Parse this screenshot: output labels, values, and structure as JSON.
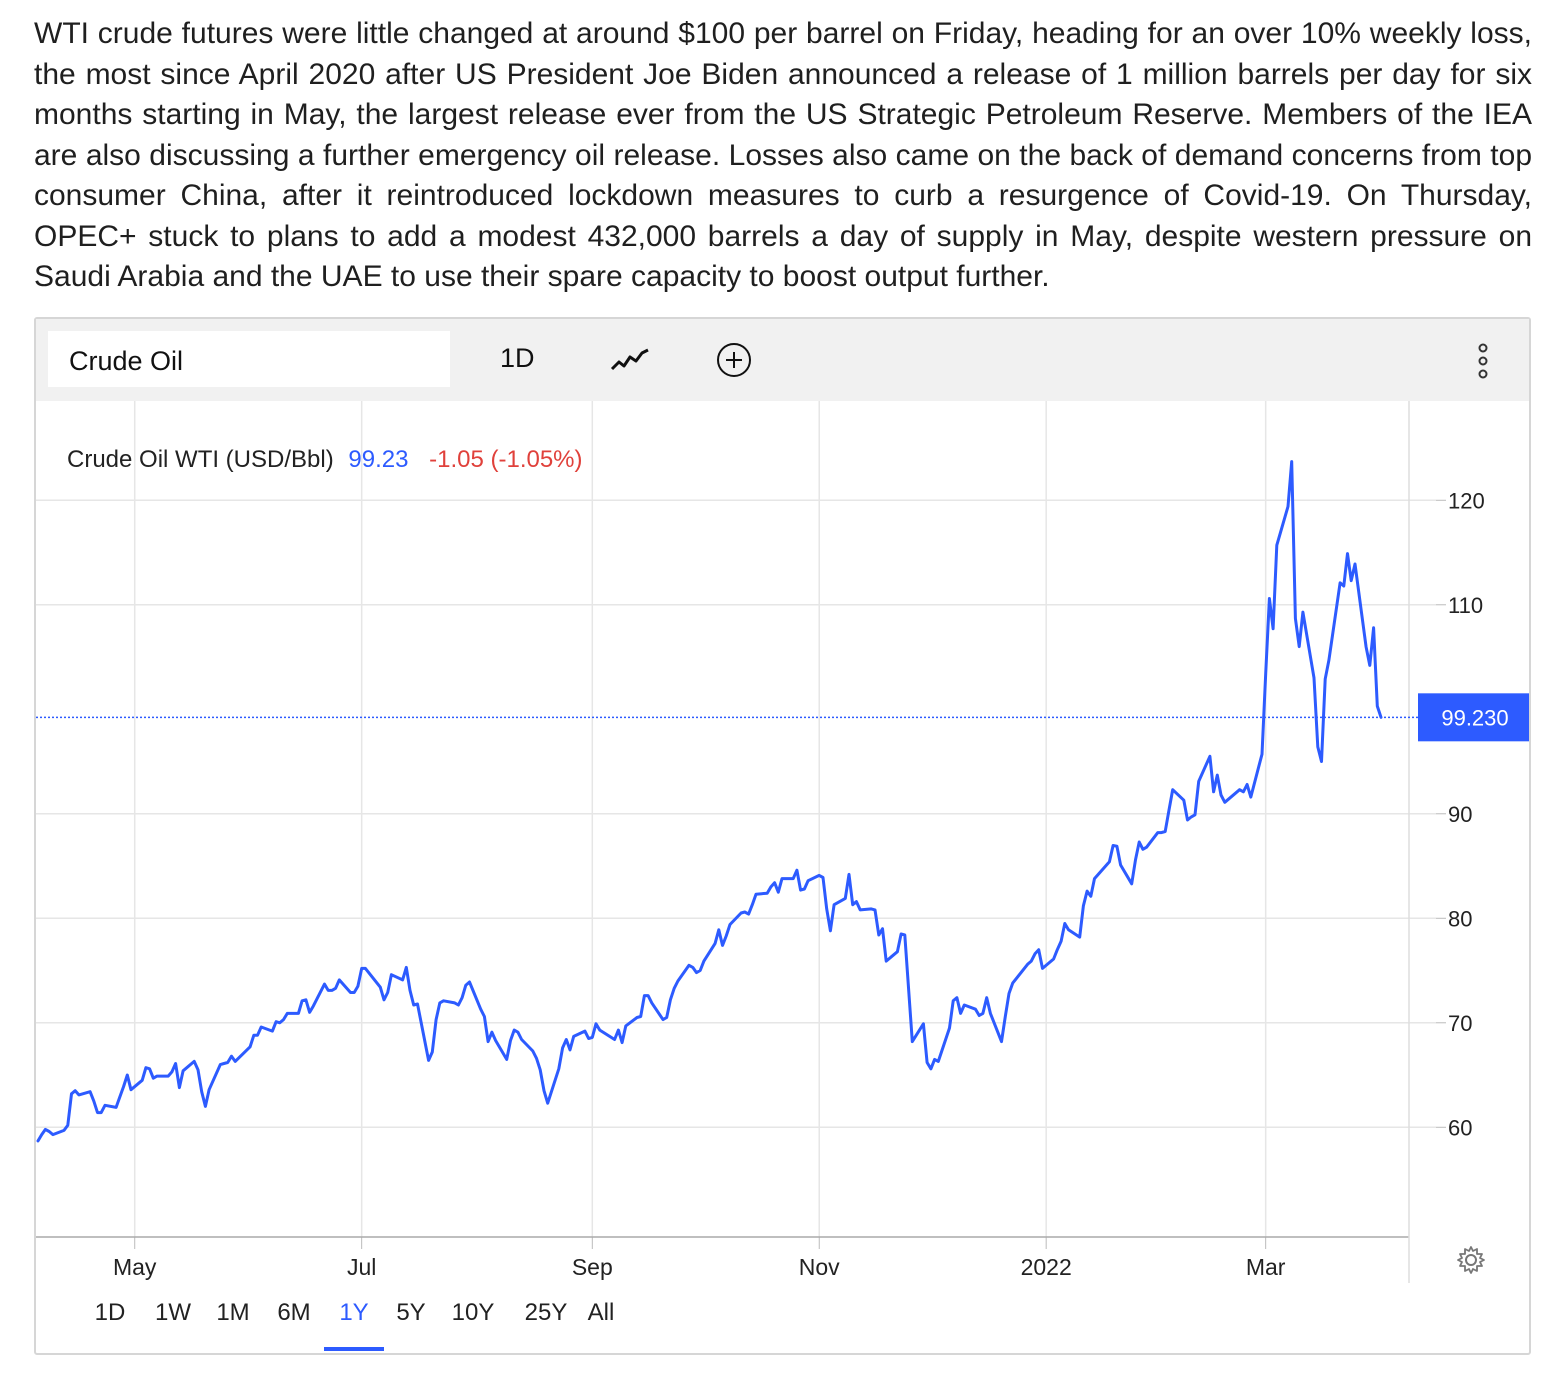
{
  "article": {
    "text": "WTI crude futures were little changed at around $100 per barrel on Friday, heading for an over 10% weekly loss, the most since April 2020 after US President Joe Biden announced a release of 1 million barrels per day for six months starting in May, the largest release ever from the US Strategic Petroleum Reserve. Members of the IEA are also discussing a further emergency oil release. Losses also came on the back of demand concerns from top consumer China, after it reintroduced lockdown measures to curb a resurgence of Covid-19. On Thursday, OPEC+ stuck to plans to add a modest 432,000 barrels a day of supply in May, despite western pressure on Saudi Arabia and the UAE to use their spare capacity to boost output further."
  },
  "toolbar": {
    "symbol": "Crude Oil",
    "interval": "1D",
    "chart_type_icon": "line-chart-icon",
    "add_icon": "plus-circle-icon",
    "more_icon": "vertical-dots-icon"
  },
  "legend": {
    "name": "Crude Oil WTI (USD/Bbl)",
    "price": "99.23",
    "change": "-1.05 (-1.05%)"
  },
  "colors": {
    "line": "#2d5bff",
    "negative": "#e0413b",
    "grid": "#e6e6e6",
    "price_tag_bg": "#2d5bff"
  },
  "current_price_tag": "99.230",
  "ranges": [
    "1D",
    "1W",
    "1M",
    "6M",
    "1Y",
    "5Y",
    "10Y",
    "25Y",
    "All"
  ],
  "active_range": "1Y",
  "settings_icon": "gear-icon",
  "chart_data": {
    "type": "line",
    "title": "Crude Oil WTI (USD/Bbl)",
    "xlabel": "",
    "ylabel": "",
    "x_tick_labels": [
      "May",
      "Jul",
      "Sep",
      "Nov",
      "2022",
      "Mar"
    ],
    "y_ticks": [
      60,
      70,
      80,
      90,
      110,
      120
    ],
    "ylim": [
      49.5,
      129.5
    ],
    "grid": true,
    "last_value": 99.23,
    "x_range": [
      "2021-04-05",
      "2022-04-01"
    ],
    "series": [
      {
        "points": [
          [
            "2021-04-05",
            58.7
          ],
          [
            "2021-04-06",
            59.3
          ],
          [
            "2021-04-07",
            59.8
          ],
          [
            "2021-04-08",
            59.6
          ],
          [
            "2021-04-09",
            59.3
          ],
          [
            "2021-04-12",
            59.7
          ],
          [
            "2021-04-13",
            60.2
          ],
          [
            "2021-04-14",
            63.2
          ],
          [
            "2021-04-15",
            63.5
          ],
          [
            "2021-04-16",
            63.1
          ],
          [
            "2021-04-19",
            63.4
          ],
          [
            "2021-04-20",
            62.5
          ],
          [
            "2021-04-21",
            61.4
          ],
          [
            "2021-04-22",
            61.4
          ],
          [
            "2021-04-23",
            62.1
          ],
          [
            "2021-04-26",
            61.9
          ],
          [
            "2021-04-27",
            62.9
          ],
          [
            "2021-04-28",
            63.9
          ],
          [
            "2021-04-29",
            65.0
          ],
          [
            "2021-04-30",
            63.6
          ],
          [
            "2021-05-03",
            64.5
          ],
          [
            "2021-05-04",
            65.7
          ],
          [
            "2021-05-05",
            65.6
          ],
          [
            "2021-05-06",
            64.7
          ],
          [
            "2021-05-07",
            64.9
          ],
          [
            "2021-05-10",
            64.9
          ],
          [
            "2021-05-11",
            65.3
          ],
          [
            "2021-05-12",
            66.1
          ],
          [
            "2021-05-13",
            63.8
          ],
          [
            "2021-05-14",
            65.4
          ],
          [
            "2021-05-17",
            66.3
          ],
          [
            "2021-05-18",
            65.5
          ],
          [
            "2021-05-19",
            63.4
          ],
          [
            "2021-05-20",
            62.0
          ],
          [
            "2021-05-21",
            63.6
          ],
          [
            "2021-05-24",
            66.0
          ],
          [
            "2021-05-25",
            66.1
          ],
          [
            "2021-05-26",
            66.2
          ],
          [
            "2021-05-27",
            66.8
          ],
          [
            "2021-05-28",
            66.3
          ],
          [
            "2021-06-01",
            67.7
          ],
          [
            "2021-06-02",
            68.8
          ],
          [
            "2021-06-03",
            68.8
          ],
          [
            "2021-06-04",
            69.6
          ],
          [
            "2021-06-07",
            69.2
          ],
          [
            "2021-06-08",
            70.1
          ],
          [
            "2021-06-09",
            70.0
          ],
          [
            "2021-06-10",
            70.3
          ],
          [
            "2021-06-11",
            70.9
          ],
          [
            "2021-06-14",
            70.9
          ],
          [
            "2021-06-15",
            72.1
          ],
          [
            "2021-06-16",
            72.2
          ],
          [
            "2021-06-17",
            71.0
          ],
          [
            "2021-06-18",
            71.6
          ],
          [
            "2021-06-21",
            73.7
          ],
          [
            "2021-06-22",
            73.1
          ],
          [
            "2021-06-23",
            73.1
          ],
          [
            "2021-06-24",
            73.3
          ],
          [
            "2021-06-25",
            74.1
          ],
          [
            "2021-06-28",
            72.9
          ],
          [
            "2021-06-29",
            72.9
          ],
          [
            "2021-06-30",
            73.5
          ],
          [
            "2021-07-01",
            75.2
          ],
          [
            "2021-07-02",
            75.2
          ],
          [
            "2021-07-06",
            73.4
          ],
          [
            "2021-07-07",
            72.2
          ],
          [
            "2021-07-08",
            72.9
          ],
          [
            "2021-07-09",
            74.6
          ],
          [
            "2021-07-12",
            74.1
          ],
          [
            "2021-07-13",
            75.3
          ],
          [
            "2021-07-14",
            73.1
          ],
          [
            "2021-07-15",
            71.7
          ],
          [
            "2021-07-16",
            71.8
          ],
          [
            "2021-07-19",
            66.4
          ],
          [
            "2021-07-20",
            67.2
          ],
          [
            "2021-07-21",
            70.3
          ],
          [
            "2021-07-22",
            71.9
          ],
          [
            "2021-07-23",
            72.1
          ],
          [
            "2021-07-26",
            71.9
          ],
          [
            "2021-07-27",
            71.7
          ],
          [
            "2021-07-28",
            72.4
          ],
          [
            "2021-07-29",
            73.6
          ],
          [
            "2021-07-30",
            73.9
          ],
          [
            "2021-08-02",
            71.3
          ],
          [
            "2021-08-03",
            70.6
          ],
          [
            "2021-08-04",
            68.2
          ],
          [
            "2021-08-05",
            69.1
          ],
          [
            "2021-08-06",
            68.3
          ],
          [
            "2021-08-09",
            66.5
          ],
          [
            "2021-08-10",
            68.3
          ],
          [
            "2021-08-11",
            69.3
          ],
          [
            "2021-08-12",
            69.1
          ],
          [
            "2021-08-13",
            68.4
          ],
          [
            "2021-08-16",
            67.3
          ],
          [
            "2021-08-17",
            66.6
          ],
          [
            "2021-08-18",
            65.5
          ],
          [
            "2021-08-19",
            63.5
          ],
          [
            "2021-08-20",
            62.3
          ],
          [
            "2021-08-23",
            65.6
          ],
          [
            "2021-08-24",
            67.6
          ],
          [
            "2021-08-25",
            68.4
          ],
          [
            "2021-08-26",
            67.4
          ],
          [
            "2021-08-27",
            68.7
          ],
          [
            "2021-08-30",
            69.2
          ],
          [
            "2021-08-31",
            68.5
          ],
          [
            "2021-09-01",
            68.6
          ],
          [
            "2021-09-02",
            69.9
          ],
          [
            "2021-09-03",
            69.3
          ],
          [
            "2021-09-07",
            68.4
          ],
          [
            "2021-09-08",
            69.3
          ],
          [
            "2021-09-09",
            68.1
          ],
          [
            "2021-09-10",
            69.7
          ],
          [
            "2021-09-13",
            70.5
          ],
          [
            "2021-09-14",
            70.6
          ],
          [
            "2021-09-15",
            72.6
          ],
          [
            "2021-09-16",
            72.6
          ],
          [
            "2021-09-17",
            71.9
          ],
          [
            "2021-09-20",
            70.3
          ],
          [
            "2021-09-21",
            70.5
          ],
          [
            "2021-09-22",
            72.2
          ],
          [
            "2021-09-23",
            73.3
          ],
          [
            "2021-09-24",
            74.0
          ],
          [
            "2021-09-27",
            75.5
          ],
          [
            "2021-09-28",
            75.3
          ],
          [
            "2021-09-29",
            74.8
          ],
          [
            "2021-09-30",
            75.0
          ],
          [
            "2021-10-01",
            75.9
          ],
          [
            "2021-10-04",
            77.6
          ],
          [
            "2021-10-05",
            78.9
          ],
          [
            "2021-10-06",
            77.4
          ],
          [
            "2021-10-07",
            78.3
          ],
          [
            "2021-10-08",
            79.4
          ],
          [
            "2021-10-11",
            80.5
          ],
          [
            "2021-10-12",
            80.6
          ],
          [
            "2021-10-13",
            80.4
          ],
          [
            "2021-10-14",
            81.3
          ],
          [
            "2021-10-15",
            82.3
          ],
          [
            "2021-10-18",
            82.4
          ],
          [
            "2021-10-19",
            83.0
          ],
          [
            "2021-10-20",
            83.4
          ],
          [
            "2021-10-21",
            82.5
          ],
          [
            "2021-10-22",
            83.8
          ],
          [
            "2021-10-25",
            83.8
          ],
          [
            "2021-10-26",
            84.6
          ],
          [
            "2021-10-27",
            82.7
          ],
          [
            "2021-10-28",
            82.8
          ],
          [
            "2021-10-29",
            83.6
          ],
          [
            "2021-11-01",
            84.1
          ],
          [
            "2021-11-02",
            83.9
          ],
          [
            "2021-11-03",
            80.9
          ],
          [
            "2021-11-04",
            78.8
          ],
          [
            "2021-11-05",
            81.3
          ],
          [
            "2021-11-08",
            81.9
          ],
          [
            "2021-11-09",
            84.2
          ],
          [
            "2021-11-10",
            81.3
          ],
          [
            "2021-11-11",
            81.6
          ],
          [
            "2021-11-12",
            80.8
          ],
          [
            "2021-11-15",
            80.9
          ],
          [
            "2021-11-16",
            80.8
          ],
          [
            "2021-11-17",
            78.4
          ],
          [
            "2021-11-18",
            79.0
          ],
          [
            "2021-11-19",
            75.9
          ],
          [
            "2021-11-22",
            76.8
          ],
          [
            "2021-11-23",
            78.5
          ],
          [
            "2021-11-24",
            78.4
          ],
          [
            "2021-11-26",
            68.2
          ],
          [
            "2021-11-29",
            69.9
          ],
          [
            "2021-11-30",
            66.2
          ],
          [
            "2021-12-01",
            65.6
          ],
          [
            "2021-12-02",
            66.5
          ],
          [
            "2021-12-03",
            66.3
          ],
          [
            "2021-12-06",
            69.5
          ],
          [
            "2021-12-07",
            72.1
          ],
          [
            "2021-12-08",
            72.4
          ],
          [
            "2021-12-09",
            70.9
          ],
          [
            "2021-12-10",
            71.7
          ],
          [
            "2021-12-13",
            71.3
          ],
          [
            "2021-12-14",
            70.7
          ],
          [
            "2021-12-15",
            70.9
          ],
          [
            "2021-12-16",
            72.4
          ],
          [
            "2021-12-17",
            70.9
          ],
          [
            "2021-12-20",
            68.2
          ],
          [
            "2021-12-21",
            70.6
          ],
          [
            "2021-12-22",
            72.8
          ],
          [
            "2021-12-23",
            73.8
          ],
          [
            "2021-12-27",
            75.6
          ],
          [
            "2021-12-28",
            75.9
          ],
          [
            "2021-12-29",
            76.6
          ],
          [
            "2021-12-30",
            76.99
          ],
          [
            "2021-12-31",
            75.2
          ],
          [
            "2022-01-03",
            76.1
          ],
          [
            "2022-01-04",
            76.99
          ],
          [
            "2022-01-05",
            77.8
          ],
          [
            "2022-01-06",
            79.5
          ],
          [
            "2022-01-07",
            78.9
          ],
          [
            "2022-01-10",
            78.2
          ],
          [
            "2022-01-11",
            81.2
          ],
          [
            "2022-01-12",
            82.6
          ],
          [
            "2022-01-13",
            82.1
          ],
          [
            "2022-01-14",
            83.8
          ],
          [
            "2022-01-18",
            85.4
          ],
          [
            "2022-01-19",
            86.96
          ],
          [
            "2022-01-20",
            86.9
          ],
          [
            "2022-01-21",
            85.1
          ],
          [
            "2022-01-24",
            83.3
          ],
          [
            "2022-01-25",
            85.6
          ],
          [
            "2022-01-26",
            87.3
          ],
          [
            "2022-01-27",
            86.6
          ],
          [
            "2022-01-28",
            86.8
          ],
          [
            "2022-01-31",
            88.2
          ],
          [
            "2022-02-01",
            88.2
          ],
          [
            "2022-02-02",
            88.3
          ],
          [
            "2022-02-03",
            90.3
          ],
          [
            "2022-02-04",
            92.3
          ],
          [
            "2022-02-07",
            91.3
          ],
          [
            "2022-02-08",
            89.4
          ],
          [
            "2022-02-09",
            89.7
          ],
          [
            "2022-02-10",
            89.9
          ],
          [
            "2022-02-11",
            93.1
          ],
          [
            "2022-02-14",
            95.5
          ],
          [
            "2022-02-15",
            92.1
          ],
          [
            "2022-02-16",
            93.7
          ],
          [
            "2022-02-17",
            91.8
          ],
          [
            "2022-02-18",
            91.1
          ],
          [
            "2022-02-22",
            92.3
          ],
          [
            "2022-02-23",
            92.1
          ],
          [
            "2022-02-24",
            92.8
          ],
          [
            "2022-02-25",
            91.6
          ],
          [
            "2022-02-28",
            95.7
          ],
          [
            "2022-03-01",
            103.4
          ],
          [
            "2022-03-02",
            110.6
          ],
          [
            "2022-03-03",
            107.7
          ],
          [
            "2022-03-04",
            115.7
          ],
          [
            "2022-03-07",
            119.4
          ],
          [
            "2022-03-08",
            123.7
          ],
          [
            "2022-03-09",
            108.7
          ],
          [
            "2022-03-10",
            106.0
          ],
          [
            "2022-03-11",
            109.3
          ],
          [
            "2022-03-14",
            103.0
          ],
          [
            "2022-03-15",
            96.4
          ],
          [
            "2022-03-16",
            95.0
          ],
          [
            "2022-03-17",
            102.9
          ],
          [
            "2022-03-18",
            104.7
          ],
          [
            "2022-03-21",
            112.1
          ],
          [
            "2022-03-22",
            111.8
          ],
          [
            "2022-03-23",
            114.9
          ],
          [
            "2022-03-24",
            112.3
          ],
          [
            "2022-03-25",
            113.9
          ],
          [
            "2022-03-28",
            105.96
          ],
          [
            "2022-03-29",
            104.2
          ],
          [
            "2022-03-30",
            107.8
          ],
          [
            "2022-03-31",
            100.3
          ],
          [
            "2022-04-01",
            99.23
          ]
        ]
      }
    ]
  }
}
